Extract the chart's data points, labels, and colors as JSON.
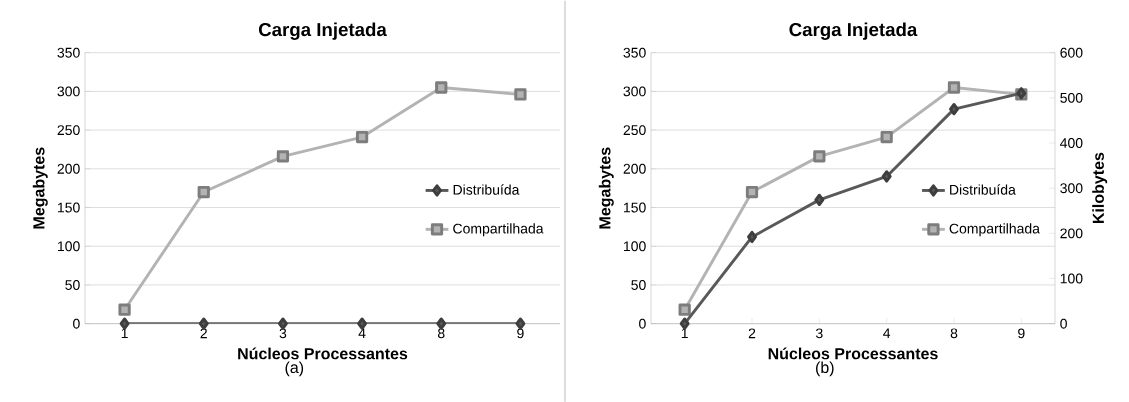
{
  "chart_data": [
    {
      "type": "line",
      "title": "Carga Injetada",
      "xlabel": "Núcleos Processantes",
      "ylabel": "Megabytes",
      "annotations": [
        "(a)"
      ],
      "categories": [
        "1",
        "2",
        "3",
        "4",
        "8",
        "9"
      ],
      "series": [
        {
          "name": "Distribuída",
          "color": "#595959",
          "marker": "diamond",
          "values": [
            0,
            0,
            0,
            0,
            0,
            0
          ]
        },
        {
          "name": "Compartilhada",
          "color": "#b3b3b3",
          "marker": "square",
          "values": [
            18,
            170,
            216,
            241,
            305,
            296
          ]
        }
      ],
      "ylim": [
        0,
        350
      ],
      "yticks": [
        0,
        50,
        100,
        150,
        200,
        250,
        300,
        350
      ],
      "grid": "y",
      "legend": "right"
    },
    {
      "type": "line",
      "title": "Carga Injetada",
      "xlabel": "Núcleos Processantes",
      "ylabel": "Megabytes",
      "y2label": "Kilobytes",
      "annotations": [
        "(b)"
      ],
      "categories": [
        "1",
        "2",
        "3",
        "4",
        "8",
        "9"
      ],
      "series": [
        {
          "name": "Distribuída",
          "color": "#595959",
          "marker": "diamond",
          "axis": "y2",
          "values": [
            0,
            192,
            274,
            326,
            475,
            510
          ]
        },
        {
          "name": "Compartilhada",
          "color": "#b3b3b3",
          "marker": "square",
          "values": [
            18,
            170,
            216,
            241,
            305,
            296
          ]
        }
      ],
      "ylim": [
        0,
        350
      ],
      "yticks": [
        0,
        50,
        100,
        150,
        200,
        250,
        300,
        350
      ],
      "y2lim": [
        0,
        600
      ],
      "y2ticks": [
        0,
        100,
        200,
        300,
        400,
        500,
        600
      ],
      "grid": "y",
      "legend": "right"
    }
  ]
}
